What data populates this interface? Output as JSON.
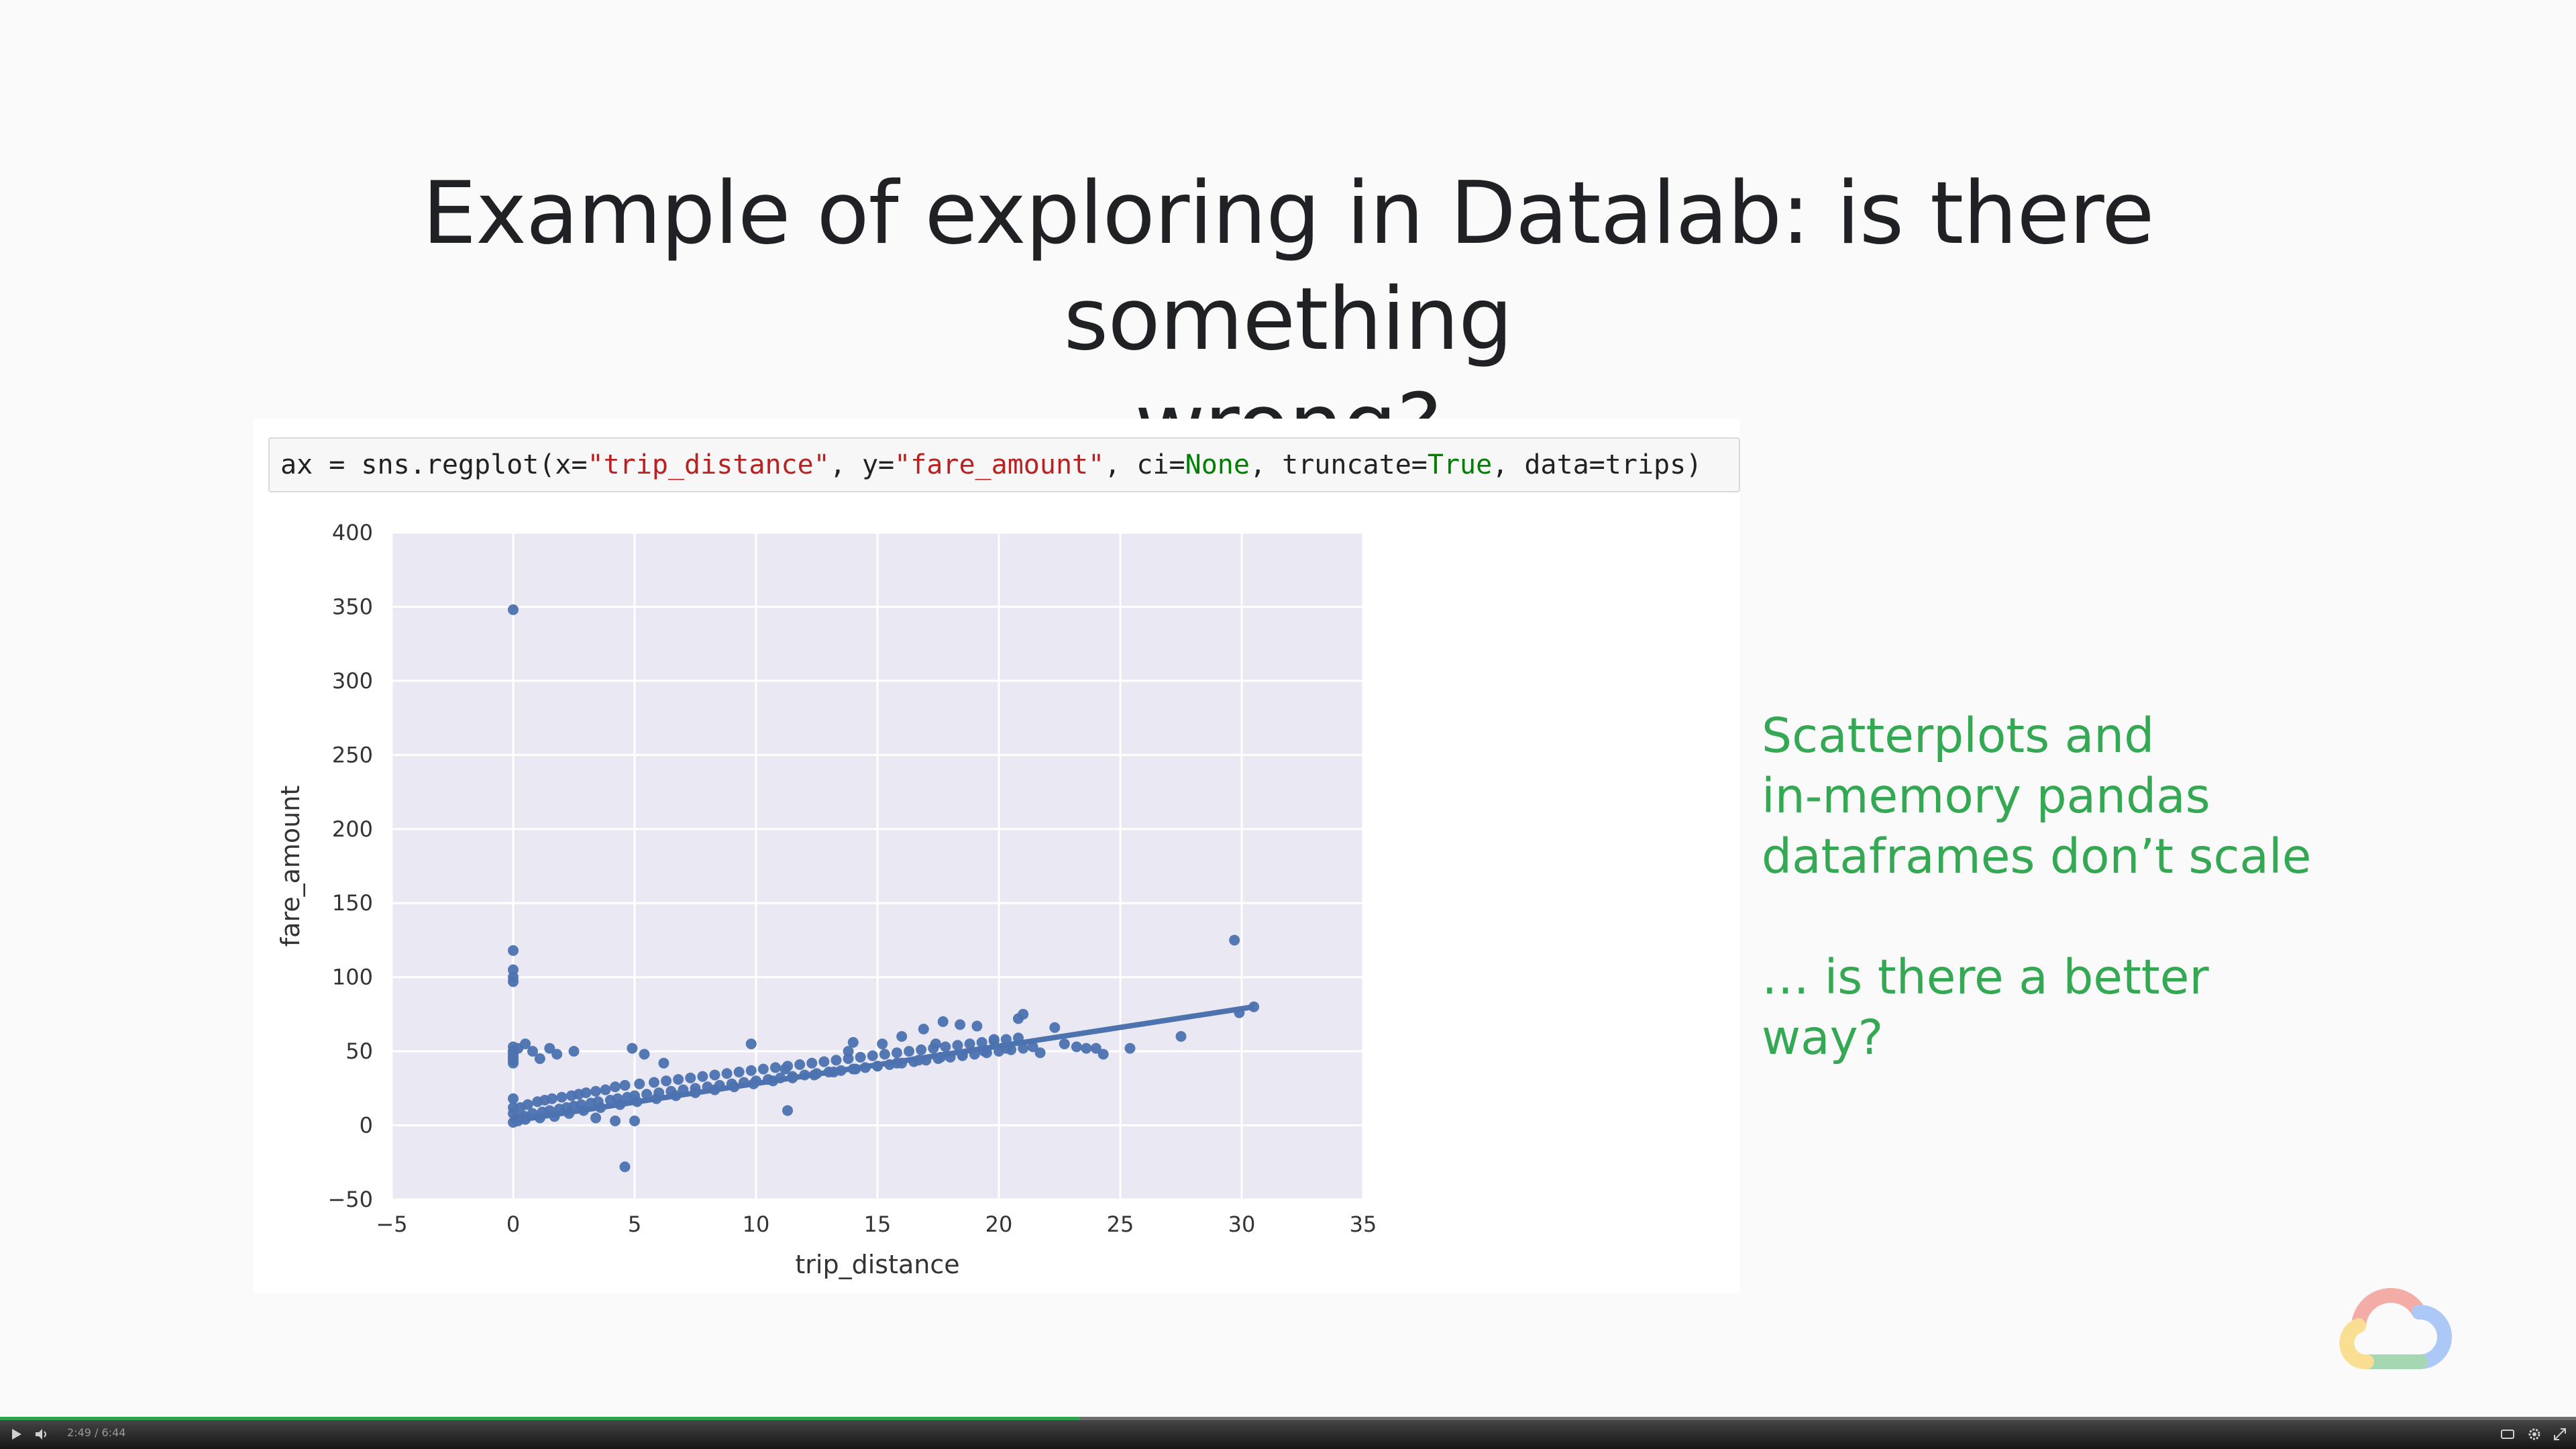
{
  "slide": {
    "title_line1": "Example of exploring in Datalab: is there something",
    "title_line2": "wrong?"
  },
  "code_cell": {
    "p1": "ax = sns.regplot(x=",
    "s1": "\"trip_distance\"",
    "p2": ", y=",
    "s2": "\"fare_amount\"",
    "p3": ", ci=",
    "k1": "None",
    "p4": ", truncate=",
    "k2": "True",
    "p5": ", data=trips)"
  },
  "chart_data": {
    "type": "scatter",
    "xlabel": "trip_distance",
    "ylabel": "fare_amount",
    "xlim": [
      -5,
      35
    ],
    "ylim": [
      -50,
      400
    ],
    "xticks": [
      -5,
      0,
      5,
      10,
      15,
      20,
      25,
      30,
      35
    ],
    "yticks": [
      -50,
      0,
      50,
      100,
      150,
      200,
      250,
      300,
      350,
      400
    ],
    "xtick_labels": [
      "−5",
      "0",
      "5",
      "10",
      "15",
      "20",
      "25",
      "30",
      "35"
    ],
    "ytick_labels": [
      "−50",
      "0",
      "50",
      "100",
      "150",
      "200",
      "250",
      "300",
      "350",
      "400"
    ],
    "grid": true,
    "point_color": "#4c72b0",
    "background_color": "#eae8f2",
    "regression_line": {
      "x": [
        0,
        30.5
      ],
      "y": [
        3,
        80
      ]
    },
    "points": {
      "x": [
        0,
        0,
        0,
        0,
        0,
        0,
        0,
        0,
        0,
        0,
        0.1,
        0.3,
        0.5,
        0.8,
        1.2,
        1.5,
        1.9,
        2.2,
        2.5,
        2.8,
        3.2,
        3.5,
        4.0,
        4.3,
        4.7,
        5.0,
        5.5,
        6.0,
        6.5,
        7.0,
        7.5,
        8.0,
        8.5,
        9.0,
        9.5,
        10.0,
        10.5,
        11.0,
        11.5,
        12.0,
        12.5,
        13.0,
        13.5,
        14.0,
        14.5,
        15.0,
        15.5,
        16.0,
        16.5,
        17.0,
        17.5,
        18.0,
        18.5,
        19.0,
        19.5,
        20.0,
        20.5,
        21.0,
        0,
        0.3,
        0.6,
        1.0,
        1.3,
        1.6,
        2.0,
        2.4,
        2.7,
        3.0,
        3.4,
        3.8,
        4.2,
        4.6,
        5.2,
        5.8,
        6.3,
        6.8,
        7.3,
        7.8,
        8.3,
        8.8,
        9.3,
        9.8,
        10.3,
        10.8,
        11.3,
        11.8,
        12.3,
        12.8,
        13.3,
        13.8,
        14.3,
        14.8,
        15.3,
        15.8,
        16.3,
        16.8,
        17.3,
        17.8,
        18.3,
        18.8,
        19.3,
        19.8,
        20.3,
        20.8,
        0,
        0.2,
        0.5,
        1.1,
        1.7,
        2.3,
        2.9,
        3.6,
        4.4,
        5.1,
        5.9,
        6.7,
        7.5,
        8.3,
        9.1,
        9.9,
        10.7,
        11.5,
        12.4,
        13.2,
        14.1,
        15.0,
        15.8,
        16.7,
        17.6,
        18.5,
        19.4,
        20.3,
        0,
        0,
        0,
        0,
        0,
        0.2,
        0.5,
        0.8,
        1.1,
        1.5,
        1.8,
        2.5,
        4.9,
        5.4,
        6.2,
        9.8,
        11.2,
        13.8,
        14.0,
        15.2,
        16.0,
        16.9,
        17.4,
        17.7,
        18.4,
        19.1,
        19.8,
        20.8,
        21.0,
        21.4,
        21.7,
        22.3,
        22.7,
        23.2,
        23.6,
        24.0,
        24.3,
        25.4,
        27.5,
        29.7,
        29.9,
        30.5,
        4.6,
        4.2,
        5.0,
        3.4,
        11.3
      ],
      "y": [
        348,
        118,
        105,
        100,
        97,
        53,
        50,
        45,
        12,
        8,
        4,
        5,
        6,
        8,
        9,
        10,
        11,
        12,
        13,
        14,
        15,
        16,
        17,
        18,
        19,
        20,
        21,
        22,
        23,
        24,
        25,
        26,
        27,
        28,
        29,
        30,
        31,
        32,
        33,
        34,
        35,
        36,
        37,
        38,
        39,
        40,
        41,
        42,
        43,
        44,
        45,
        46,
        47,
        48,
        49,
        50,
        51,
        52,
        18,
        12,
        14,
        16,
        17,
        18,
        19,
        20,
        21,
        22,
        23,
        24,
        26,
        27,
        28,
        29,
        30,
        31,
        32,
        33,
        34,
        35,
        36,
        37,
        38,
        39,
        40,
        41,
        42,
        43,
        44,
        45,
        46,
        47,
        48,
        49,
        50,
        51,
        52,
        53,
        54,
        55,
        56,
        57,
        58,
        59,
        2,
        3,
        4,
        5,
        6,
        8,
        10,
        12,
        14,
        16,
        18,
        20,
        22,
        24,
        26,
        28,
        30,
        32,
        34,
        36,
        38,
        40,
        42,
        44,
        46,
        48,
        50,
        52,
        50,
        48,
        46,
        44,
        42,
        52,
        55,
        50,
        45,
        52,
        48,
        50,
        52,
        48,
        42,
        55,
        38,
        50,
        56,
        55,
        60,
        65,
        55,
        70,
        68,
        67,
        58,
        72,
        75,
        53,
        49,
        66,
        55,
        53,
        52,
        52,
        48,
        52,
        60,
        125,
        76,
        80,
        -28,
        3,
        3,
        5,
        10
      ]
    }
  },
  "side_note": {
    "para1": "Scatterplots and\nin-memory pandas\ndataframes don’t scale",
    "para2": "… is there a better\nway?"
  },
  "player": {
    "time": "2:49 / 6:44",
    "progress": 0.419,
    "progress_color": "#2ea44f"
  },
  "icons": {
    "logo": "google-cloud-logo-icon",
    "play": "play-icon",
    "volume": "volume-icon",
    "captions": "captions-icon",
    "settings": "gear-icon",
    "fullscreen": "fullscreen-icon"
  }
}
